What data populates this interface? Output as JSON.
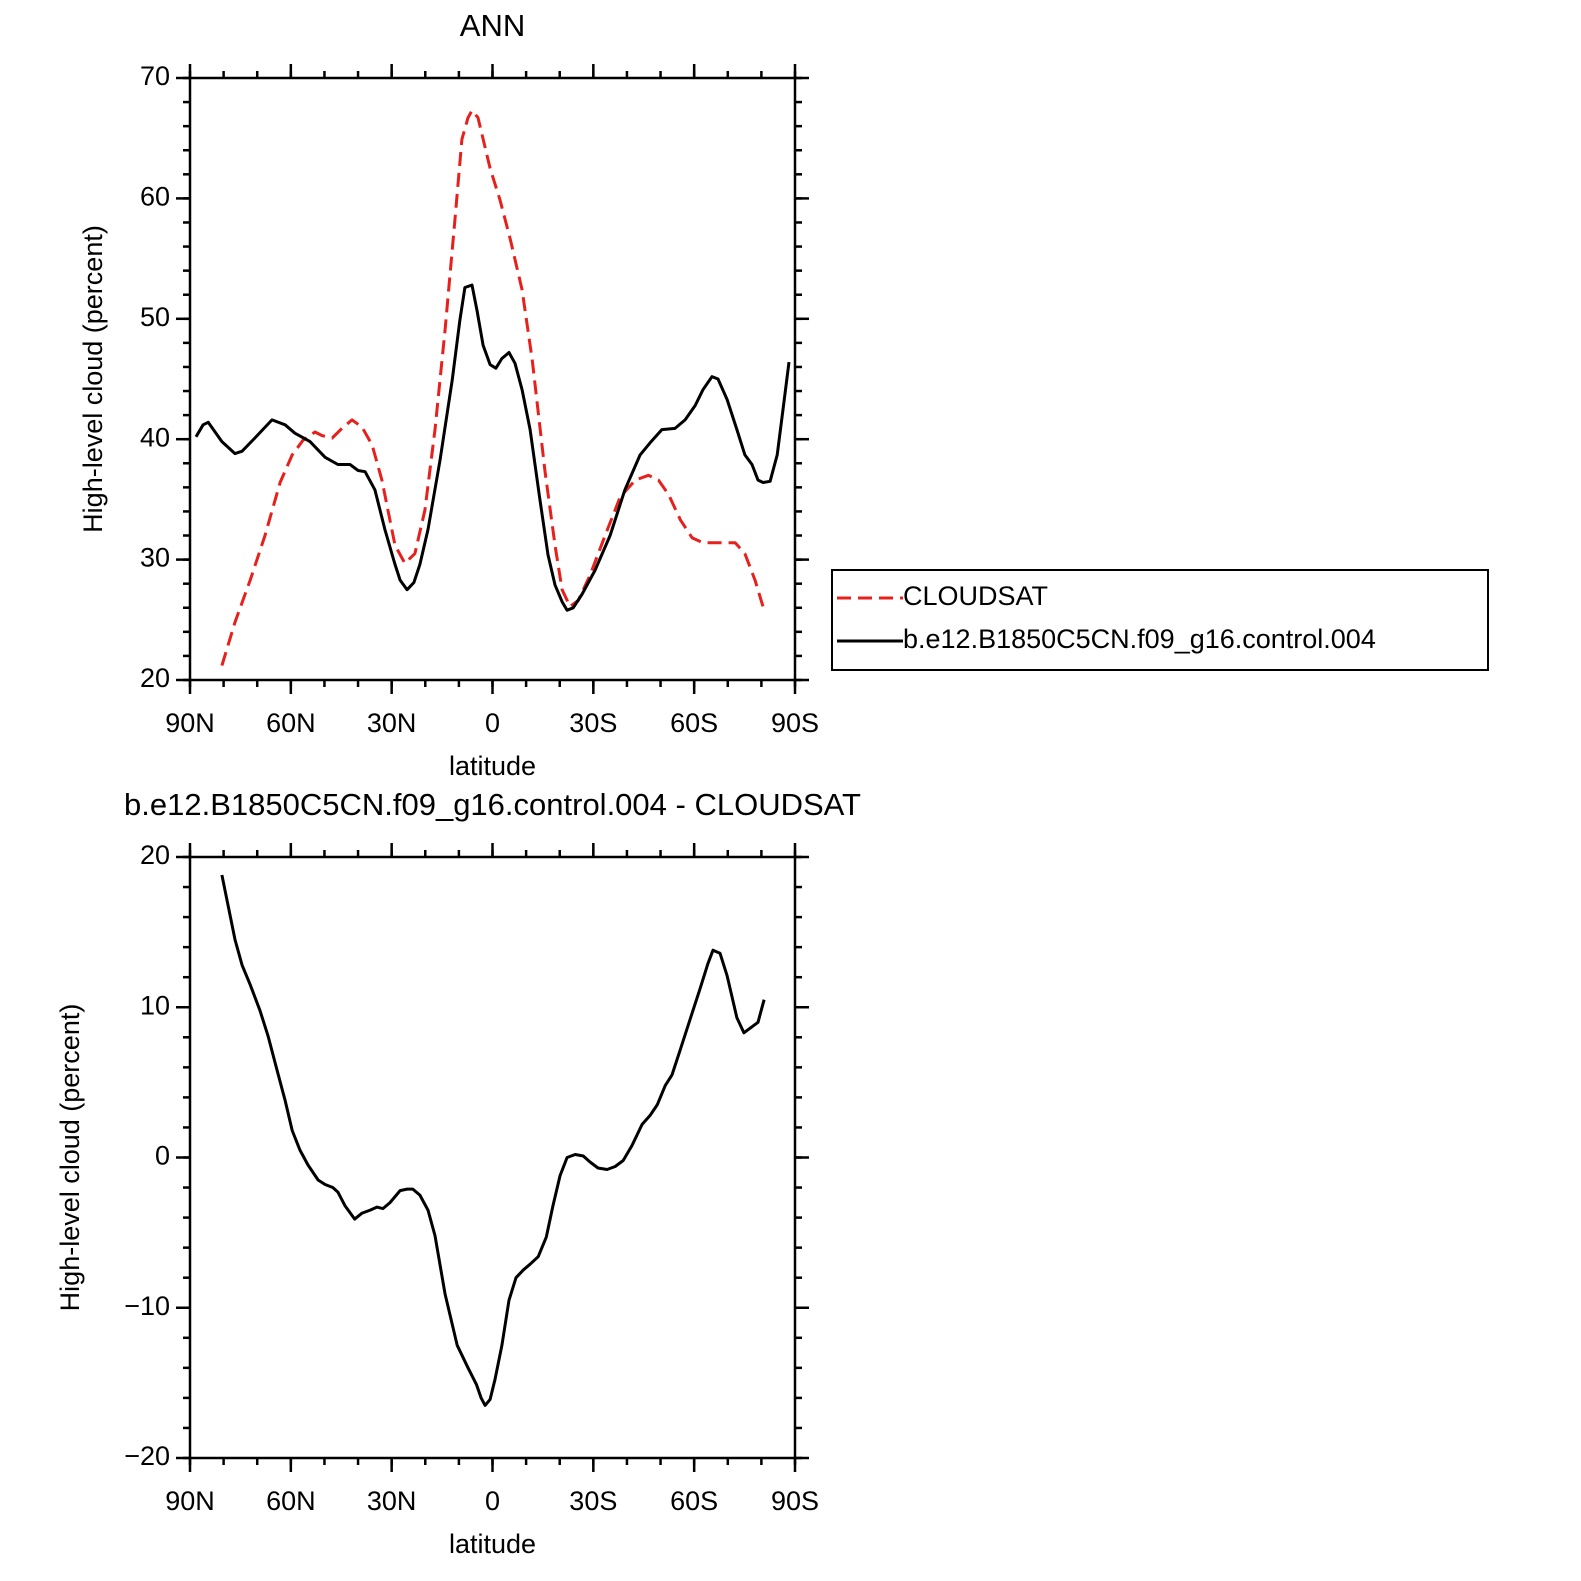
{
  "chart_data": [
    {
      "type": "line",
      "title": "ANN",
      "xlabel": "latitude",
      "ylabel": "High-level cloud (percent)",
      "xlim": [
        90,
        -90
      ],
      "xticks": [
        {
          "value": 90,
          "label": "90N"
        },
        {
          "value": 60,
          "label": "60N"
        },
        {
          "value": 30,
          "label": "30N"
        },
        0,
        {
          "value": -30,
          "label": "30S"
        },
        {
          "value": -60,
          "label": "60S"
        },
        {
          "value": -90,
          "label": "90S"
        }
      ],
      "ylim": [
        20,
        70
      ],
      "yticks": [
        20,
        30,
        40,
        50,
        60,
        70
      ],
      "legend": "right",
      "series": [
        {
          "name": "CLOUDSAT",
          "color": "#e8201c",
          "linestyle": "dashed",
          "x": [
            80.5,
            76.6,
            72.1,
            67.7,
            63.2,
            59.6,
            56.4,
            52.8,
            50.7,
            47.7,
            44.8,
            41.8,
            38.8,
            35.8,
            32.9,
            29.0,
            26.1,
            23.1,
            20.1,
            17.1,
            14.1,
            11.2,
            9.1,
            7.3,
            6.1,
            4.3,
            0.7,
            -2.2,
            -5.2,
            -8.8,
            -11.8,
            -15.6,
            -18.6,
            -20.7,
            -23.1,
            -25.5,
            -29.0,
            -33.5,
            -38.0,
            -42.5,
            -46.4,
            -49.4,
            -52.4,
            -55.9,
            -59.4,
            -62.6,
            -67.1,
            -72.2,
            -75.1,
            -78.1,
            -80.8
          ],
          "values": [
            21.2,
            24.8,
            28.3,
            32.0,
            36.4,
            38.7,
            39.9,
            40.6,
            40.3,
            40.1,
            40.9,
            41.6,
            41.0,
            39.5,
            36.6,
            31.2,
            29.7,
            30.5,
            34.1,
            40.8,
            49.1,
            58.2,
            64.9,
            66.7,
            67.3,
            66.7,
            62.5,
            59.9,
            56.7,
            52.4,
            46.6,
            37.4,
            31.2,
            27.5,
            26.1,
            26.6,
            28.7,
            32.0,
            35.2,
            36.6,
            37.0,
            36.6,
            35.4,
            33.3,
            31.8,
            31.4,
            31.4,
            31.4,
            30.5,
            28.3,
            25.8
          ]
        },
        {
          "name": "b.e12.B1850C5CN.f09_g16.control.004",
          "color": "#000000",
          "linestyle": "solid",
          "x": [
            88.2,
            86.1,
            84.6,
            80.5,
            76.6,
            74.5,
            70.7,
            65.6,
            61.7,
            58.8,
            54.3,
            49.8,
            46.0,
            42.4,
            40.0,
            37.9,
            35.0,
            32.0,
            29.0,
            27.5,
            25.4,
            23.4,
            21.6,
            19.2,
            15.6,
            12.0,
            9.7,
            8.2,
            6.1,
            4.6,
            2.8,
            0.7,
            -1.0,
            -2.8,
            -4.9,
            -6.7,
            -8.8,
            -11.2,
            -14.1,
            -16.5,
            -18.6,
            -20.7,
            -22.2,
            -24.0,
            -26.6,
            -30.5,
            -35.0,
            -39.4,
            -43.9,
            -46.9,
            -50.4,
            -54.3,
            -57.3,
            -60.3,
            -62.6,
            -65.3,
            -67.1,
            -69.8,
            -72.7,
            -75.1,
            -77.2,
            -79.0,
            -80.5,
            -82.6,
            -84.7,
            -86.4,
            -88.2
          ],
          "values": [
            40.2,
            41.2,
            41.4,
            39.8,
            38.8,
            39.0,
            40.1,
            41.6,
            41.2,
            40.5,
            39.8,
            38.5,
            37.9,
            37.9,
            37.4,
            37.3,
            35.8,
            32.5,
            29.6,
            28.3,
            27.5,
            28.1,
            29.6,
            32.5,
            38.3,
            44.9,
            49.9,
            52.6,
            52.8,
            50.7,
            47.8,
            46.2,
            45.9,
            46.7,
            47.2,
            46.3,
            44.1,
            40.8,
            35.0,
            30.4,
            27.9,
            26.5,
            25.8,
            26.0,
            27.1,
            29.1,
            32.0,
            35.8,
            38.7,
            39.7,
            40.8,
            40.9,
            41.6,
            42.8,
            44.1,
            45.2,
            45.0,
            43.3,
            40.8,
            38.7,
            37.9,
            36.6,
            36.4,
            36.5,
            38.7,
            42.4,
            46.4
          ]
        }
      ]
    },
    {
      "type": "line",
      "title": "b.e12.B1850C5CN.f09_g16.control.004 - CLOUDSAT",
      "xlabel": "latitude",
      "ylabel": "High-level cloud (percent)",
      "xlim": [
        90,
        -90
      ],
      "xticks": [
        {
          "value": 90,
          "label": "90N"
        },
        {
          "value": 60,
          "label": "60N"
        },
        {
          "value": 30,
          "label": "30N"
        },
        0,
        {
          "value": -30,
          "label": "30S"
        },
        {
          "value": -60,
          "label": "60S"
        },
        {
          "value": -90,
          "label": "90S"
        }
      ],
      "ylim": [
        -20,
        20
      ],
      "yticks": [
        {
          "value": -20,
          "label": "−20"
        },
        {
          "value": -10,
          "label": "−10"
        },
        0,
        10,
        20
      ],
      "series": [
        {
          "color": "#000000",
          "linestyle": "solid",
          "x": [
            80.5,
            78.7,
            76.6,
            74.5,
            72.1,
            69.2,
            66.8,
            64.1,
            61.7,
            59.6,
            57.3,
            54.9,
            51.9,
            49.8,
            47.5,
            46.0,
            43.9,
            41.0,
            38.8,
            36.4,
            34.4,
            32.6,
            30.5,
            27.5,
            25.4,
            23.7,
            21.6,
            19.2,
            17.1,
            14.1,
            10.5,
            7.3,
            4.8,
            3.4,
            2.2,
            0.7,
            -0.7,
            -2.8,
            -4.9,
            -7.0,
            -9.1,
            -11.2,
            -13.6,
            -16.0,
            -18.0,
            -20.1,
            -22.2,
            -24.6,
            -27.0,
            -29.0,
            -31.4,
            -34.1,
            -36.5,
            -38.9,
            -41.5,
            -44.5,
            -46.9,
            -49.0,
            -51.4,
            -53.4,
            -55.9,
            -58.8,
            -61.7,
            -64.1,
            -65.6,
            -67.7,
            -69.8,
            -72.7,
            -74.8,
            -79.0,
            -80.8
          ],
          "values": [
            18.8,
            16.8,
            14.5,
            12.8,
            11.5,
            9.8,
            8.1,
            5.8,
            3.8,
            1.8,
            0.5,
            -0.5,
            -1.5,
            -1.8,
            -2.0,
            -2.3,
            -3.2,
            -4.1,
            -3.7,
            -3.5,
            -3.3,
            -3.4,
            -3.0,
            -2.2,
            -2.1,
            -2.1,
            -2.5,
            -3.5,
            -5.2,
            -9.1,
            -12.5,
            -14.0,
            -15.1,
            -16.0,
            -16.5,
            -16.1,
            -14.8,
            -12.5,
            -9.5,
            -8.0,
            -7.5,
            -7.1,
            -6.6,
            -5.3,
            -3.2,
            -1.2,
            0.0,
            0.2,
            0.1,
            -0.3,
            -0.7,
            -0.8,
            -0.6,
            -0.2,
            0.8,
            2.2,
            2.8,
            3.5,
            4.8,
            5.5,
            7.2,
            9.2,
            11.2,
            12.9,
            13.8,
            13.6,
            12.1,
            9.3,
            8.3,
            9.0,
            10.5
          ]
        }
      ]
    }
  ]
}
